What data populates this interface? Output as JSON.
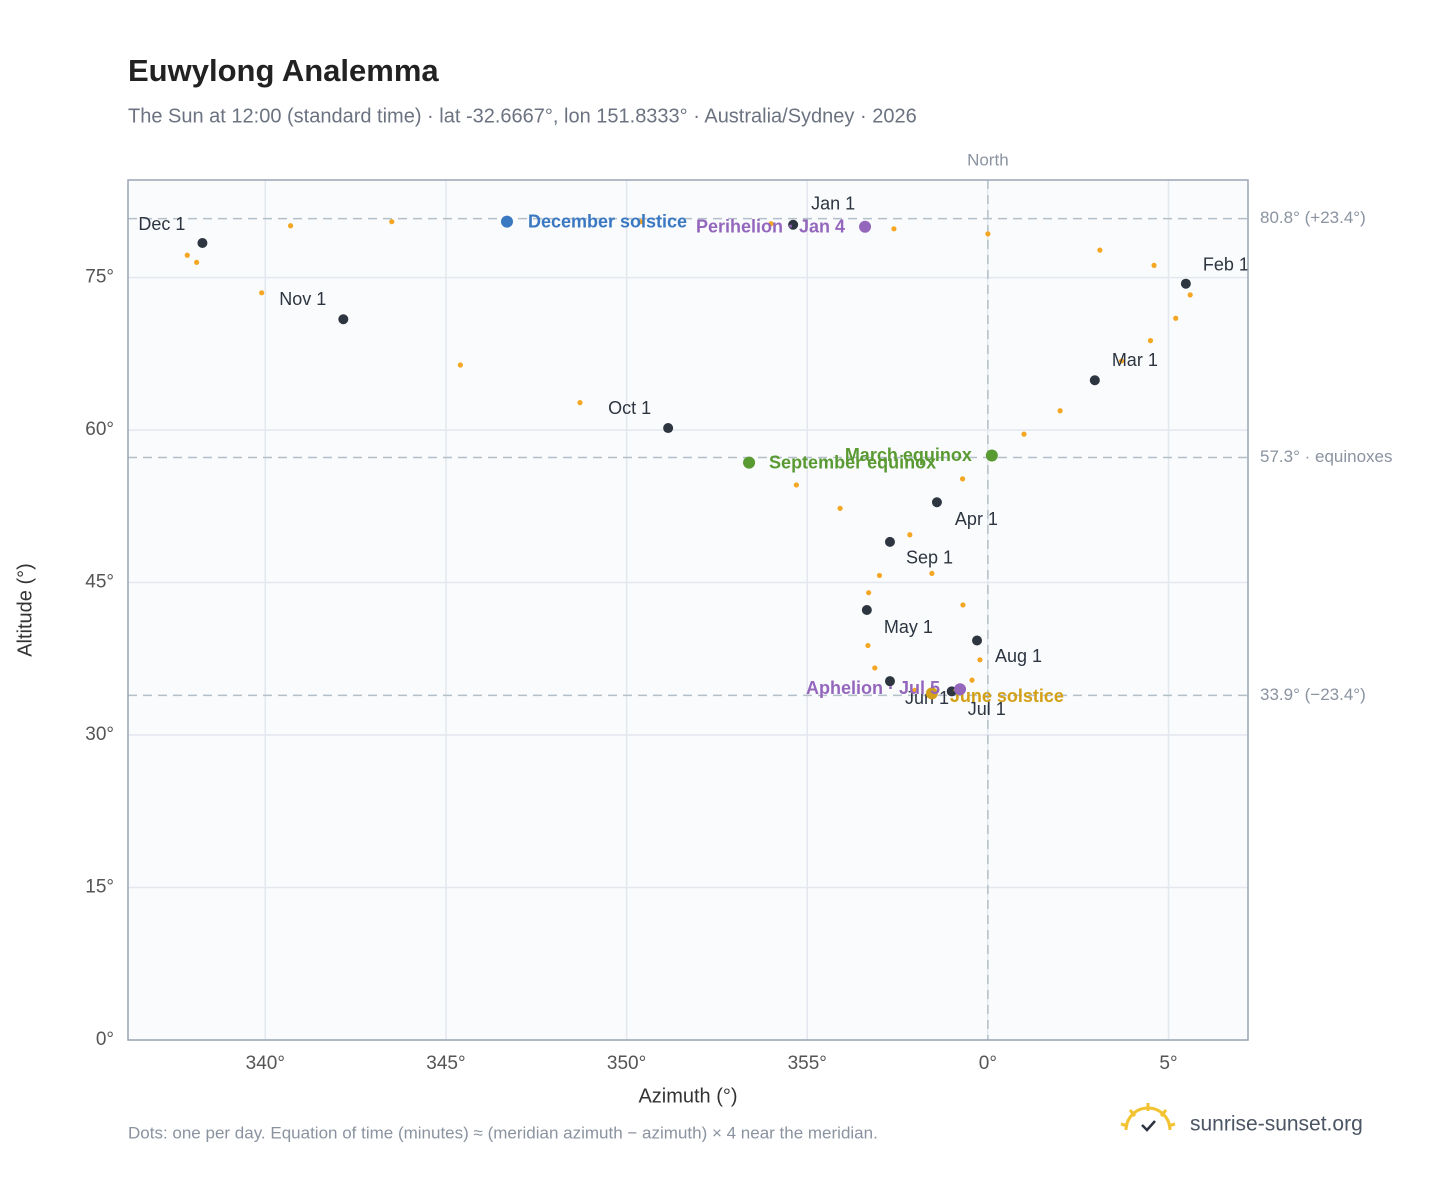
{
  "chart_data": {
    "type": "scatter",
    "title": "Euwylong Analemma",
    "subtitle": "The Sun at 12:00 (standard time) · lat -32.6667°, lon 151.8333° · Australia/Sydney · 2026",
    "xlabel": "Azimuth (°)",
    "ylabel": "Altitude (°)",
    "xlim": [
      -23.8,
      7.2
    ],
    "ylim": [
      0,
      84.6
    ],
    "xticks": [
      {
        "value": -20,
        "label": "340°"
      },
      {
        "value": -15,
        "label": "345°"
      },
      {
        "value": -10,
        "label": "350°"
      },
      {
        "value": -5,
        "label": "355°"
      },
      {
        "value": 0,
        "label": "0°"
      },
      {
        "value": 5,
        "label": "5°"
      }
    ],
    "yticks": [
      {
        "value": 0,
        "label": "0°"
      },
      {
        "value": 15,
        "label": "15°"
      },
      {
        "value": 30,
        "label": "30°"
      },
      {
        "value": 45,
        "label": "45°"
      },
      {
        "value": 60,
        "label": "60°"
      },
      {
        "value": 75,
        "label": "75°"
      }
    ],
    "grid": true,
    "path": {
      "color": "#f5a623",
      "x": [
        -5.39,
        -2.6,
        0.0,
        3.1,
        4.6,
        5.48,
        5.6,
        5.2,
        4.5,
        3.7,
        2.96,
        2.0,
        1.0,
        0.11,
        -0.7,
        -1.41,
        -2.16,
        -3.0,
        -3.3,
        -3.35,
        -3.32,
        -3.13,
        -2.71,
        -2.02,
        -1.55,
        -1.0,
        -0.44,
        -0.22,
        -0.3,
        -0.69,
        -1.55,
        -2.71,
        -4.09,
        -5.3,
        -6.61,
        -8.85,
        -11.29,
        -14.6,
        -17.84,
        -20.1,
        -21.9,
        -22.16,
        -21.74,
        -19.3,
        -16.5,
        -13.31,
        -9.6,
        -6.0
      ],
      "y": [
        80.2,
        79.8,
        79.3,
        77.7,
        76.2,
        74.4,
        73.3,
        71.0,
        68.8,
        66.8,
        64.9,
        61.9,
        59.6,
        57.5,
        55.2,
        52.9,
        49.7,
        45.7,
        44.0,
        42.3,
        38.8,
        36.6,
        35.3,
        34.4,
        34.1,
        34.3,
        35.4,
        37.4,
        39.3,
        42.8,
        45.9,
        49.0,
        52.3,
        54.6,
        56.8,
        60.2,
        62.7,
        66.4,
        70.9,
        73.5,
        76.5,
        77.2,
        78.4,
        80.1,
        80.5,
        80.5,
        80.5,
        80.3
      ]
    },
    "months": {
      "color": "#2d3540",
      "labels": [
        "Jan 1",
        "Feb 1",
        "Mar 1",
        "Apr 1",
        "May 1",
        "Jun 1",
        "Jul 1",
        "Aug 1",
        "Sep 1",
        "Oct 1",
        "Nov 1",
        "Dec 1"
      ],
      "x": [
        -5.39,
        5.48,
        2.96,
        -1.41,
        -3.35,
        -2.71,
        -1.0,
        -0.3,
        -2.71,
        -8.85,
        -17.84,
        -21.74
      ],
      "y": [
        80.2,
        74.4,
        64.9,
        52.9,
        42.3,
        35.3,
        34.3,
        39.3,
        49.0,
        60.2,
        70.9,
        78.4
      ]
    },
    "events": [
      {
        "label": "December solstice",
        "color": "#3a78c2",
        "x": -13.31,
        "y": 80.5
      },
      {
        "label": "Perihelion · Jan 4",
        "color": "#9467bd",
        "x": -3.4,
        "y": 80.0
      },
      {
        "label": "March equinox",
        "color": "#5a9a32",
        "x": 0.11,
        "y": 57.5
      },
      {
        "label": "September equinox",
        "color": "#5a9a32",
        "x": -6.61,
        "y": 56.8
      },
      {
        "label": "June solstice",
        "color": "#d4a017",
        "x": -1.55,
        "y": 34.1
      },
      {
        "label": "Aphelion · Jul 5",
        "color": "#9467bd",
        "x": -0.77,
        "y": 34.5
      }
    ],
    "reference_lines": [
      {
        "value": 80.8,
        "label": "80.8° (+23.4°)"
      },
      {
        "value": 57.3,
        "label": "57.3° · equinoxes"
      },
      {
        "value": 33.9,
        "label": "33.9° (−23.4°)"
      }
    ],
    "vertical_line": {
      "value": 0,
      "label": "North"
    },
    "footnote": "Dots: one per day. Equation of time (minutes) ≈ (meridian azimuth − azimuth) × 4 near the meridian.",
    "brand": "sunrise-sunset.org"
  }
}
